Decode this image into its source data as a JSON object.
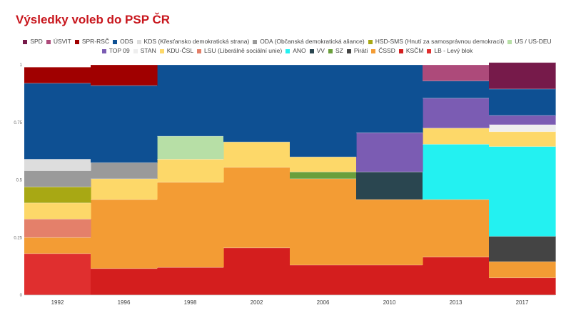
{
  "chart_data": {
    "type": "area",
    "stepped": true,
    "title": "Výsledky voleb do PSP ČR",
    "xlabel": "",
    "ylabel": "",
    "ylim": [
      0,
      1
    ],
    "yticks": [
      0,
      0.25,
      0.5,
      0.75,
      1
    ],
    "ytick_labels": [
      "0",
      "0.25",
      "0.5",
      "0.75",
      "1"
    ],
    "categories": [
      "1992",
      "1996",
      "1998",
      "2002",
      "2006",
      "2010",
      "2013",
      "2017"
    ],
    "legend_position": "top",
    "series": [
      {
        "name": "LB - Levý blok",
        "color": "#e02f2f",
        "values": [
          0.18,
          0,
          0,
          0,
          0,
          0,
          0,
          0
        ]
      },
      {
        "name": "KSČM",
        "color": "#d41e1e",
        "values": [
          0,
          0.115,
          0.12,
          0.205,
          0.13,
          0.13,
          0.165,
          0.075
        ]
      },
      {
        "name": "ČSSD",
        "color": "#f39c34",
        "values": [
          0.07,
          0.3,
          0.37,
          0.35,
          0.375,
          0.285,
          0.25,
          0.07
        ]
      },
      {
        "name": "Piráti",
        "color": "#444444",
        "values": [
          0,
          0,
          0,
          0,
          0,
          0,
          0,
          0.11
        ]
      },
      {
        "name": "SZ",
        "color": "#6a9f3c",
        "values": [
          0,
          0,
          0,
          0,
          0.03,
          0,
          0,
          0
        ]
      },
      {
        "name": "VV",
        "color": "#2a4650",
        "values": [
          0,
          0,
          0,
          0,
          0,
          0.12,
          0,
          0
        ]
      },
      {
        "name": "ANO",
        "color": "#23f1f1",
        "values": [
          0,
          0,
          0,
          0,
          0,
          0,
          0.24,
          0.39
        ]
      },
      {
        "name": "LSU (Liberálně sociální unie)",
        "color": "#e4806a",
        "values": [
          0.08,
          0,
          0,
          0,
          0,
          0,
          0,
          0
        ]
      },
      {
        "name": "KDU-ČSL",
        "color": "#fdd869",
        "values": [
          0.07,
          0.09,
          0.1,
          0.11,
          0.065,
          0,
          0.07,
          0.065
        ]
      },
      {
        "name": "STAN",
        "color": "#eeeeee",
        "values": [
          0,
          0,
          0,
          0,
          0,
          0,
          0,
          0.03
        ]
      },
      {
        "name": "TOP 09",
        "color": "#7b5cb3",
        "values": [
          0,
          0,
          0,
          0,
          0,
          0.17,
          0.13,
          0.04
        ]
      },
      {
        "name": "US / US-DEU",
        "color": "#b7dfa6",
        "values": [
          0,
          0,
          0.1,
          0,
          0,
          0,
          0,
          0
        ]
      },
      {
        "name": "HSD-SMS (Hnutí za samosprávnou demokracii)",
        "color": "#a8a814",
        "values": [
          0.07,
          0,
          0,
          0,
          0,
          0,
          0,
          0
        ]
      },
      {
        "name": "ODA (Občanská demokratická aliance)",
        "color": "#9a9a9a",
        "values": [
          0.07,
          0.07,
          0,
          0,
          0,
          0,
          0,
          0
        ]
      },
      {
        "name": "KDS (Křesťansko demokratická strana)",
        "color": "#dddddd",
        "values": [
          0.05,
          0,
          0,
          0,
          0,
          0,
          0,
          0
        ]
      },
      {
        "name": "ODS",
        "color": "#0e5093",
        "values": [
          0.33,
          0.335,
          0.31,
          0.335,
          0.4,
          0.295,
          0.075,
          0.115
        ]
      },
      {
        "name": "SPR-RSČ",
        "color": "#a00000",
        "values": [
          0.07,
          0.09,
          0,
          0,
          0,
          0,
          0,
          0
        ]
      },
      {
        "name": "ÚSVIT",
        "color": "#ad4a7a",
        "values": [
          0,
          0,
          0,
          0,
          0,
          0,
          0.07,
          0
        ]
      },
      {
        "name": "SPD",
        "color": "#761a4a",
        "values": [
          0,
          0,
          0,
          0,
          0,
          0,
          0,
          0.115
        ]
      }
    ],
    "legend_order": [
      "SPD",
      "ÚSVIT",
      "SPR-RSČ",
      "ODS",
      "KDS (Křesťansko demokratická strana)",
      "ODA (Občanská demokratická aliance)",
      "HSD-SMS (Hnutí za samosprávnou demokracii)",
      "US / US-DEU",
      "TOP 09",
      "STAN",
      "KDU-ČSL",
      "LSU (Liberálně sociální unie)",
      "ANO",
      "VV",
      "SZ",
      "Piráti",
      "ČSSD",
      "KSČM",
      "LB - Levý blok"
    ]
  }
}
